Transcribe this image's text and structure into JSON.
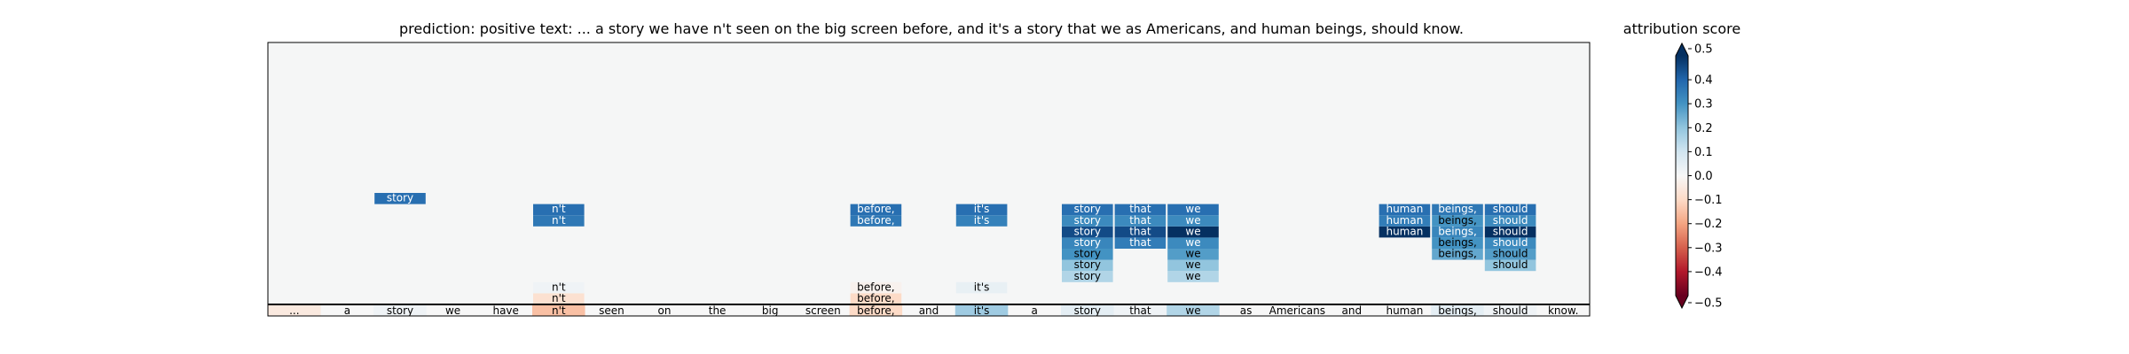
{
  "chart_data": {
    "type": "heatmap",
    "title": "prediction:  positive     text:  ... a story we have n't seen on the big screen before, and it's a story that we as Americans, and human beings, should know.",
    "tokens": [
      "...",
      "a",
      "story",
      "we",
      "have",
      "n't",
      "seen",
      "on",
      "the",
      "big",
      "screen",
      "before,",
      "and",
      "it's",
      "a",
      "story",
      "that",
      "we",
      "as",
      "Americans,",
      "and",
      "human",
      "beings,",
      "should",
      "know."
    ],
    "base_scores": [
      -0.05,
      0.0,
      0.02,
      0.0,
      0.0,
      -0.15,
      0.0,
      0.0,
      0.0,
      0.0,
      0.0,
      -0.1,
      0.0,
      0.18,
      0.0,
      0.05,
      0.02,
      0.15,
      0.0,
      0.0,
      0.0,
      0.0,
      0.05,
      0.02,
      0.0
    ],
    "stacks": [
      {
        "col": 2,
        "cells": [
          {
            "level": 9,
            "text": "story",
            "score": 0.38
          }
        ]
      },
      {
        "col": 5,
        "cells": [
          {
            "level": 0,
            "text": "n't",
            "score": -0.08
          },
          {
            "level": 1,
            "text": "n't",
            "score": 0.02
          },
          {
            "level": 7,
            "text": "n't",
            "score": 0.36
          },
          {
            "level": 8,
            "text": "n't",
            "score": 0.38
          }
        ]
      },
      {
        "col": 11,
        "cells": [
          {
            "level": 0,
            "text": "before,",
            "score": -0.1
          },
          {
            "level": 1,
            "text": "before,",
            "score": -0.02
          },
          {
            "level": 7,
            "text": "before,",
            "score": 0.36
          },
          {
            "level": 8,
            "text": "before,",
            "score": 0.38
          }
        ]
      },
      {
        "col": 13,
        "cells": [
          {
            "level": 1,
            "text": "it's",
            "score": 0.04
          },
          {
            "level": 7,
            "text": "it's",
            "score": 0.34
          },
          {
            "level": 8,
            "text": "it's",
            "score": 0.38
          }
        ]
      },
      {
        "col": 15,
        "cells": [
          {
            "level": 2,
            "text": "story",
            "score": 0.15
          },
          {
            "level": 3,
            "text": "story",
            "score": 0.2
          },
          {
            "level": 4,
            "text": "story",
            "score": 0.3
          },
          {
            "level": 5,
            "text": "story",
            "score": 0.33
          },
          {
            "level": 6,
            "text": "story",
            "score": 0.45
          },
          {
            "level": 7,
            "text": "story",
            "score": 0.32
          },
          {
            "level": 8,
            "text": "story",
            "score": 0.38
          }
        ]
      },
      {
        "col": 16,
        "cells": [
          {
            "level": 5,
            "text": "that",
            "score": 0.35
          },
          {
            "level": 6,
            "text": "that",
            "score": 0.45
          },
          {
            "level": 7,
            "text": "that",
            "score": 0.32
          },
          {
            "level": 8,
            "text": "that",
            "score": 0.38
          }
        ]
      },
      {
        "col": 17,
        "cells": [
          {
            "level": 2,
            "text": "we",
            "score": 0.15
          },
          {
            "level": 3,
            "text": "we",
            "score": 0.2
          },
          {
            "level": 4,
            "text": "we",
            "score": 0.28
          },
          {
            "level": 5,
            "text": "we",
            "score": 0.32
          },
          {
            "level": 6,
            "text": "we",
            "score": 0.5
          },
          {
            "level": 7,
            "text": "we",
            "score": 0.32
          },
          {
            "level": 8,
            "text": "we",
            "score": 0.38
          }
        ]
      },
      {
        "col": 21,
        "cells": [
          {
            "level": 6,
            "text": "human",
            "score": 0.5
          },
          {
            "level": 7,
            "text": "human",
            "score": 0.35
          },
          {
            "level": 8,
            "text": "human",
            "score": 0.38
          }
        ]
      },
      {
        "col": 22,
        "cells": [
          {
            "level": 4,
            "text": "beings,",
            "score": 0.26
          },
          {
            "level": 5,
            "text": "beings,",
            "score": 0.3
          },
          {
            "level": 6,
            "text": "beings,",
            "score": 0.33
          },
          {
            "level": 7,
            "text": "beings,",
            "score": 0.3
          },
          {
            "level": 8,
            "text": "beings,",
            "score": 0.36
          }
        ]
      },
      {
        "col": 23,
        "cells": [
          {
            "level": 3,
            "text": "should",
            "score": 0.2
          },
          {
            "level": 4,
            "text": "should",
            "score": 0.28
          },
          {
            "level": 5,
            "text": "should",
            "score": 0.32
          },
          {
            "level": 6,
            "text": "should",
            "score": 0.5
          },
          {
            "level": 7,
            "text": "should",
            "score": 0.32
          },
          {
            "level": 8,
            "text": "should",
            "score": 0.38
          }
        ]
      }
    ],
    "colorbar": {
      "label": "attribution score",
      "range": [
        -0.5,
        0.5
      ],
      "ticks": [
        0.5,
        0.4,
        0.3,
        0.2,
        0.1,
        0.0,
        -0.1,
        -0.2,
        -0.3,
        -0.4,
        -0.5
      ],
      "tick_labels": [
        "0.5",
        "0.4",
        "0.3",
        "0.2",
        "0.1",
        "0.0",
        "−0.1",
        "−0.2",
        "−0.3",
        "−0.4",
        "−0.5"
      ],
      "colormap": "RdBu",
      "extend": "both"
    },
    "colors": {
      "background": "#f5f6f6",
      "neg_end": "#67001f",
      "pos_end": "#053061",
      "mid": "#f7f7f7"
    }
  }
}
